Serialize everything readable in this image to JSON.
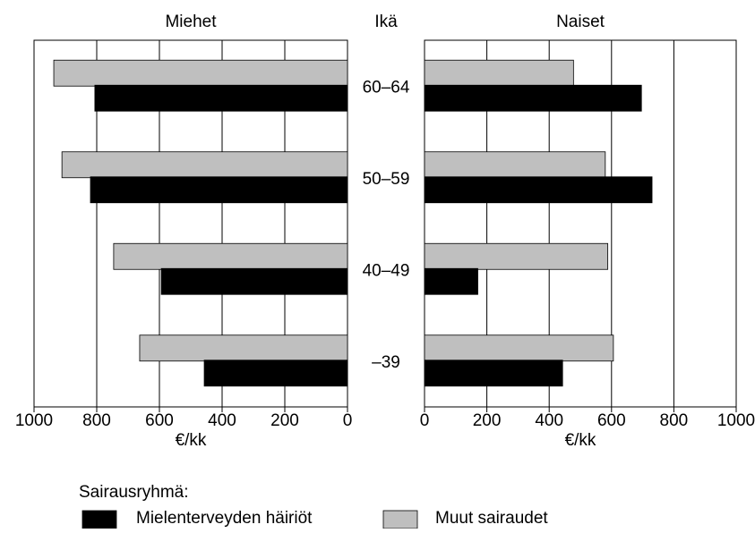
{
  "chart_data": {
    "type": "butterfly",
    "category_label": "Ikä",
    "categories": [
      "60–64",
      "50–59",
      "40–49",
      "–39"
    ],
    "panels": [
      {
        "title": "Miehet",
        "xlabel": "€/kk",
        "xlim": [
          0,
          1000
        ],
        "xticks": [
          0,
          200,
          400,
          600,
          800,
          1000
        ],
        "reversed": true
      },
      {
        "title": "Naiset",
        "xlabel": "€/kk",
        "xlim": [
          0,
          1000
        ],
        "xticks": [
          0,
          200,
          400,
          600,
          800,
          1000
        ],
        "reversed": false
      }
    ],
    "legend_title": "Sairausryhmä:",
    "series": [
      {
        "name": "Mielenterveyden häiriöt",
        "color": "#000000",
        "values": [
          [
            806,
            820,
            594,
            457
          ],
          [
            696,
            730,
            171,
            443
          ]
        ]
      },
      {
        "name": "Muut sairaudet",
        "color": "#bfbfbf",
        "values": [
          [
            937,
            911,
            746,
            663
          ],
          [
            478,
            580,
            588,
            606
          ]
        ]
      }
    ],
    "grid": true
  }
}
